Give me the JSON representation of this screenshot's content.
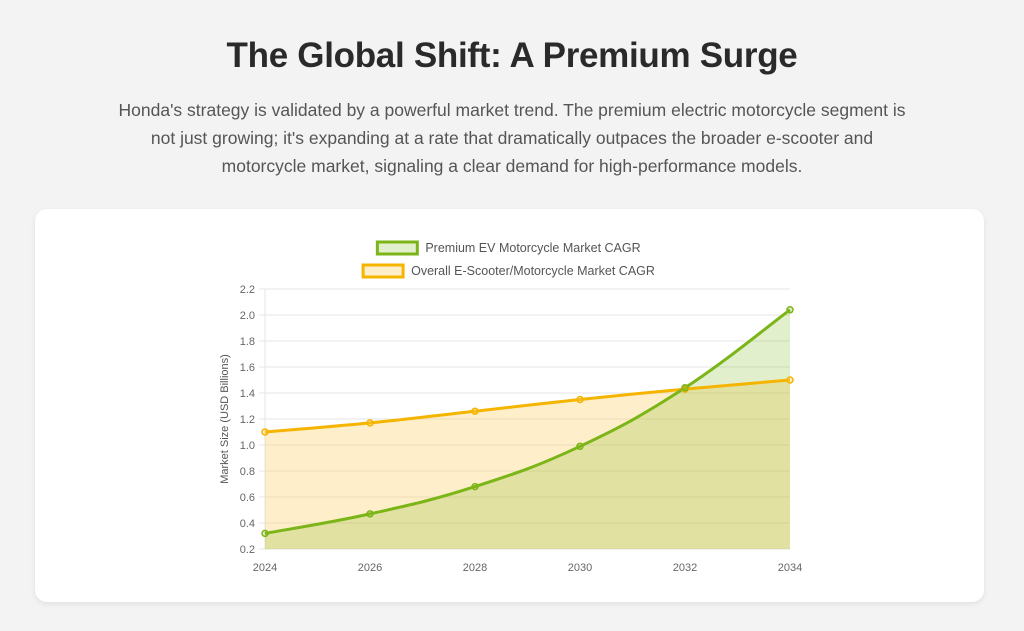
{
  "header": {
    "title": "The Global Shift: A Premium Surge",
    "subtitle": "Honda's strategy is validated by a powerful market trend. The premium electric motorcycle segment is not just growing; it's expanding at a rate that dramatically outpaces the broader e-scooter and motorcycle market, signaling a clear demand for high-performance models."
  },
  "chart_data": {
    "type": "area",
    "title": "",
    "xlabel": "",
    "ylabel": "Market Size (USD Billions)",
    "categories": [
      "2024",
      "2026",
      "2028",
      "2030",
      "2032",
      "2034"
    ],
    "ylim": [
      0.2,
      2.2
    ],
    "yticks": [
      0.2,
      0.4,
      0.6,
      0.8,
      1.0,
      1.2,
      1.4,
      1.6,
      1.8,
      2.0,
      2.2
    ],
    "grid": true,
    "legend_position": "top-center",
    "series": [
      {
        "name": "Premium EV Motorcycle Market CAGR",
        "values": [
          0.32,
          0.47,
          0.68,
          0.99,
          1.44,
          2.04
        ],
        "color": "#7cb518",
        "fill": "rgba(124,181,24,0.22)"
      },
      {
        "name": "Overall E-Scooter/Motorcycle Market CAGR",
        "values": [
          1.1,
          1.17,
          1.26,
          1.35,
          1.43,
          1.5
        ],
        "color": "#f5b400",
        "fill": "rgba(253,203,80,0.30)"
      }
    ]
  }
}
